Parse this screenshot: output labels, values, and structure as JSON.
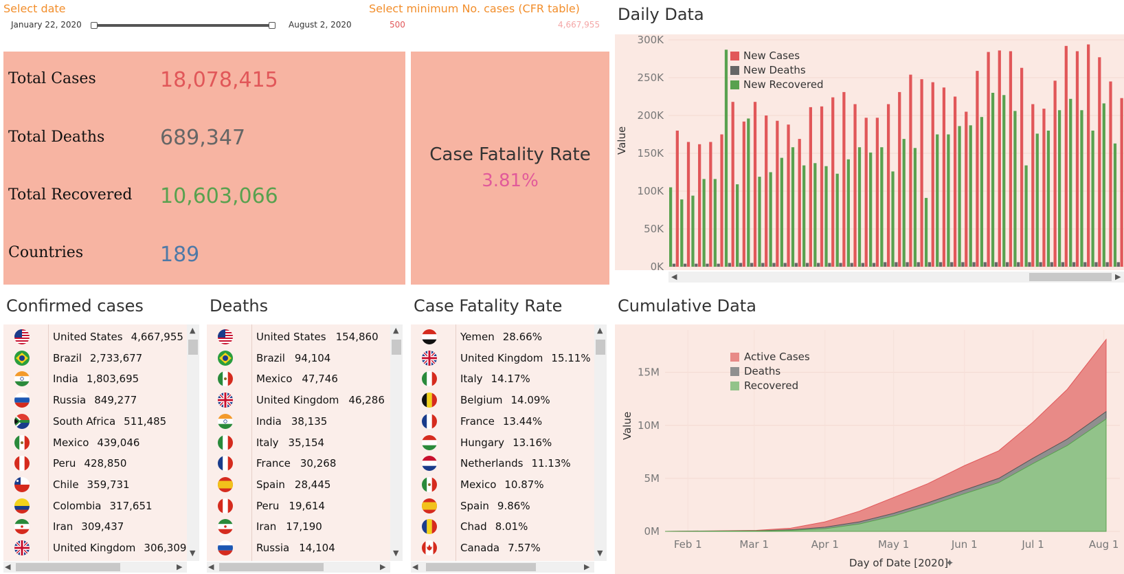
{
  "filters": {
    "date": {
      "title": "Select date",
      "start": "January 22, 2020",
      "end": "August 2, 2020"
    },
    "min_cases": {
      "title": "Select minimum No. cases (CFR table)",
      "min": "500",
      "max": "4,667,955"
    }
  },
  "kpi": {
    "total_cases_label": "Total Cases",
    "total_cases": "18,078,415",
    "total_deaths_label": "Total Deaths",
    "total_deaths": "689,347",
    "total_recovered_label": "Total Recovered",
    "total_recovered": "10,603,066",
    "countries_label": "Countries",
    "countries": "189",
    "cfr_title": "Case Fatality Rate",
    "cfr_value": "3.81%"
  },
  "colors": {
    "cases": "#e15759",
    "deaths": "#666666",
    "recovered": "#59a14f",
    "countries": "#4e79a7",
    "cfr": "#e15a9a",
    "filter_title": "#f28e2b",
    "panel": "#f7b4a2",
    "chart_bg": "#fbe9e3"
  },
  "confirmed": {
    "title": "Confirmed cases",
    "rows": [
      {
        "name": "United States",
        "value": "4,667,955",
        "flag": "us-flag"
      },
      {
        "name": "Brazil",
        "value": "2,733,677",
        "flag": "brazil-flag"
      },
      {
        "name": "India",
        "value": "1,803,695",
        "flag": "india-flag"
      },
      {
        "name": "Russia",
        "value": "849,277",
        "flag": "russia-flag"
      },
      {
        "name": "South Africa",
        "value": "511,485",
        "flag": "south-africa-flag"
      },
      {
        "name": "Mexico",
        "value": "439,046",
        "flag": "mexico-flag"
      },
      {
        "name": "Peru",
        "value": "428,850",
        "flag": "peru-flag"
      },
      {
        "name": "Chile",
        "value": "359,731",
        "flag": "chile-flag"
      },
      {
        "name": "Colombia",
        "value": "317,651",
        "flag": "colombia-flag"
      },
      {
        "name": "Iran",
        "value": "309,437",
        "flag": "iran-flag"
      },
      {
        "name": "United Kingdom",
        "value": "306,309",
        "flag": "uk-flag"
      }
    ]
  },
  "deaths": {
    "title": "Deaths",
    "rows": [
      {
        "name": "United States",
        "value": "154,860",
        "flag": "us-flag"
      },
      {
        "name": "Brazil",
        "value": "94,104",
        "flag": "brazil-flag"
      },
      {
        "name": "Mexico",
        "value": "47,746",
        "flag": "mexico-flag"
      },
      {
        "name": "United Kingdom",
        "value": "46,286",
        "flag": "uk-flag"
      },
      {
        "name": "India",
        "value": "38,135",
        "flag": "india-flag"
      },
      {
        "name": "Italy",
        "value": "35,154",
        "flag": "italy-flag"
      },
      {
        "name": "France",
        "value": "30,268",
        "flag": "france-flag"
      },
      {
        "name": "Spain",
        "value": "28,445",
        "flag": "spain-flag"
      },
      {
        "name": "Peru",
        "value": "19,614",
        "flag": "peru-flag"
      },
      {
        "name": "Iran",
        "value": "17,190",
        "flag": "iran-flag"
      },
      {
        "name": "Russia",
        "value": "14,104",
        "flag": "russia-flag"
      }
    ]
  },
  "cfr": {
    "title": "Case Fatality Rate",
    "rows": [
      {
        "name": "Yemen",
        "value": "28.66%",
        "flag": "yemen-flag"
      },
      {
        "name": "United Kingdom",
        "value": "15.11%",
        "flag": "uk-flag"
      },
      {
        "name": "Italy",
        "value": "14.17%",
        "flag": "italy-flag"
      },
      {
        "name": "Belgium",
        "value": "14.09%",
        "flag": "belgium-flag"
      },
      {
        "name": "France",
        "value": "13.44%",
        "flag": "france-flag"
      },
      {
        "name": "Hungary",
        "value": "13.16%",
        "flag": "hungary-flag"
      },
      {
        "name": "Netherlands",
        "value": "11.13%",
        "flag": "netherlands-flag"
      },
      {
        "name": "Mexico",
        "value": "10.87%",
        "flag": "mexico-flag"
      },
      {
        "name": "Spain",
        "value": "9.86%",
        "flag": "spain-flag"
      },
      {
        "name": "Chad",
        "value": "8.01%",
        "flag": "chad-flag"
      },
      {
        "name": "Canada",
        "value": "7.57%",
        "flag": "canada-flag"
      }
    ]
  },
  "chart_data": [
    {
      "type": "bar",
      "title": "Daily Data",
      "ylabel": "Value",
      "ylim": [
        0,
        300000
      ],
      "yticks": [
        "0K",
        "50K",
        "100K",
        "150K",
        "200K",
        "250K",
        "300K"
      ],
      "legend_placement": "top-left",
      "series": [
        {
          "name": "New Cases",
          "values": [
            180000,
            165000,
            162000,
            165000,
            175000,
            218000,
            192000,
            218000,
            200000,
            193000,
            188000,
            169000,
            211000,
            212000,
            224000,
            231000,
            215000,
            197000,
            197000,
            215000,
            231000,
            254000,
            248000,
            244000,
            237000,
            225000,
            205000,
            259000,
            284000,
            286000,
            285000,
            263000,
            215000,
            209000,
            246000,
            292000,
            285000,
            294000,
            277000,
            245000,
            223000
          ]
        },
        {
          "name": "New Deaths",
          "values": [
            4000,
            4000,
            4000,
            4000,
            4000,
            5000,
            5000,
            5000,
            5000,
            5000,
            5000,
            5000,
            5000,
            5000,
            5000,
            5000,
            5000,
            5000,
            5000,
            6000,
            6000,
            6000,
            6000,
            6000,
            6000,
            6000,
            6000,
            6000,
            6000,
            6000,
            6000,
            6000,
            6000,
            6000,
            6000,
            6000,
            6000,
            6000,
            6000,
            6000,
            6000
          ]
        },
        {
          "name": "New Recovered",
          "values": [
            105000,
            89000,
            94000,
            116000,
            116000,
            287000,
            109000,
            196000,
            119000,
            125000,
            144000,
            158000,
            134000,
            137000,
            133000,
            123000,
            142000,
            158000,
            151000,
            158000,
            126000,
            169000,
            157000,
            91000,
            175000,
            175000,
            186000,
            187000,
            198000,
            230000,
            227000,
            206000,
            134000,
            176000,
            180000,
            207000,
            222000,
            207000,
            180000,
            216000,
            163000
          ]
        }
      ]
    },
    {
      "type": "area",
      "title": "Cumulative Data",
      "xlabel": "Day of Date [2020]",
      "ylabel": "Value",
      "ylim": [
        0,
        19000000
      ],
      "yticks": [
        {
          "label": "0M",
          "v": 0
        },
        {
          "label": "5M",
          "v": 5000000
        },
        {
          "label": "10M",
          "v": 10000000
        },
        {
          "label": "15M",
          "v": 15000000
        }
      ],
      "xticks": [
        {
          "label": "Feb 1",
          "d": 10
        },
        {
          "label": "Mar 1",
          "d": 39
        },
        {
          "label": "Apr 1",
          "d": 70
        },
        {
          "label": "May 1",
          "d": 100
        },
        {
          "label": "Jun 1",
          "d": 131
        },
        {
          "label": "Jul 1",
          "d": 161
        },
        {
          "label": "Aug 1",
          "d": 192
        }
      ],
      "x_range_days": [
        0,
        193
      ],
      "legend_placement": "top-left",
      "series": [
        {
          "name": "Active Cases",
          "points": [
            [
              0,
              0
            ],
            [
              40,
              100000
            ],
            [
              55,
              300000
            ],
            [
              70,
              900000
            ],
            [
              85,
              1900000
            ],
            [
              100,
              3200000
            ],
            [
              115,
              4500000
            ],
            [
              131,
              6200000
            ],
            [
              146,
              7600000
            ],
            [
              161,
              10300000
            ],
            [
              176,
              13400000
            ],
            [
              193,
              18100000
            ]
          ]
        },
        {
          "name": "Deaths",
          "points": [
            [
              0,
              0
            ],
            [
              40,
              60000
            ],
            [
              55,
              150000
            ],
            [
              70,
              400000
            ],
            [
              85,
              900000
            ],
            [
              100,
              1700000
            ],
            [
              115,
              2700000
            ],
            [
              131,
              3900000
            ],
            [
              146,
              5000000
            ],
            [
              161,
              6900000
            ],
            [
              176,
              8700000
            ],
            [
              193,
              11300000
            ]
          ]
        },
        {
          "name": "Recovered",
          "points": [
            [
              0,
              0
            ],
            [
              40,
              50000
            ],
            [
              55,
              100000
            ],
            [
              70,
              250000
            ],
            [
              85,
              700000
            ],
            [
              100,
              1450000
            ],
            [
              115,
              2400000
            ],
            [
              131,
              3550000
            ],
            [
              146,
              4600000
            ],
            [
              161,
              6400000
            ],
            [
              176,
              8100000
            ],
            [
              193,
              10600000
            ]
          ]
        }
      ]
    }
  ]
}
